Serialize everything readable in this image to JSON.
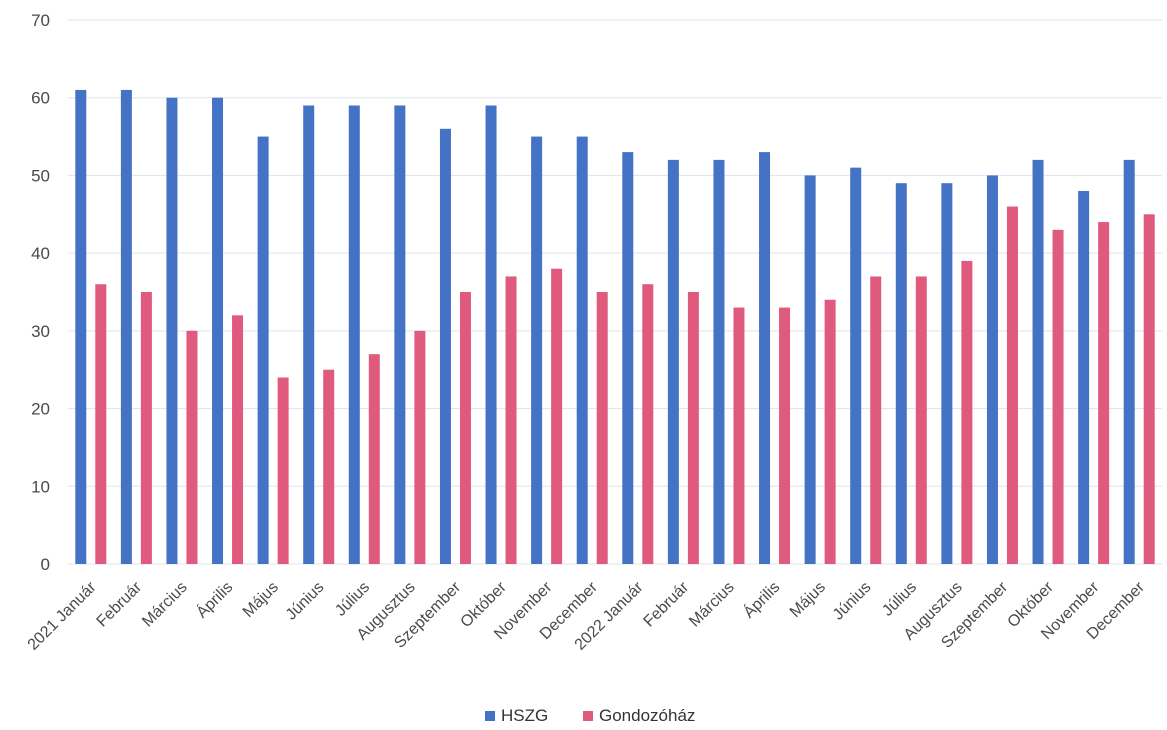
{
  "chart_data": {
    "type": "bar",
    "title": "",
    "xlabel": "",
    "ylabel": "",
    "ylim": [
      0,
      70
    ],
    "yticks": [
      0,
      10,
      20,
      30,
      40,
      50,
      60,
      70
    ],
    "grid": true,
    "legend_position": "bottom",
    "categories": [
      "2021 Január",
      "Február",
      "Március",
      "Április",
      "Május",
      "Június",
      "Július",
      "Augusztus",
      "Szeptember",
      "Október",
      "November",
      "December",
      "2022 Január",
      "Február",
      "Március",
      "Április",
      "Május",
      "Június",
      "Július",
      "Augusztus",
      "Szeptember",
      "Október",
      "November",
      "December"
    ],
    "series": [
      {
        "name": "HSZG",
        "color": "#4472C4",
        "values": [
          61,
          61,
          60,
          60,
          55,
          59,
          59,
          59,
          56,
          59,
          55,
          55,
          53,
          52,
          52,
          53,
          50,
          51,
          49,
          49,
          50,
          52,
          48,
          52
        ]
      },
      {
        "name": "Gondozóház",
        "color": "#E05A7E",
        "values": [
          36,
          35,
          30,
          32,
          24,
          25,
          27,
          30,
          35,
          37,
          38,
          35,
          36,
          35,
          33,
          33,
          34,
          37,
          37,
          39,
          46,
          43,
          44,
          45
        ]
      }
    ]
  }
}
